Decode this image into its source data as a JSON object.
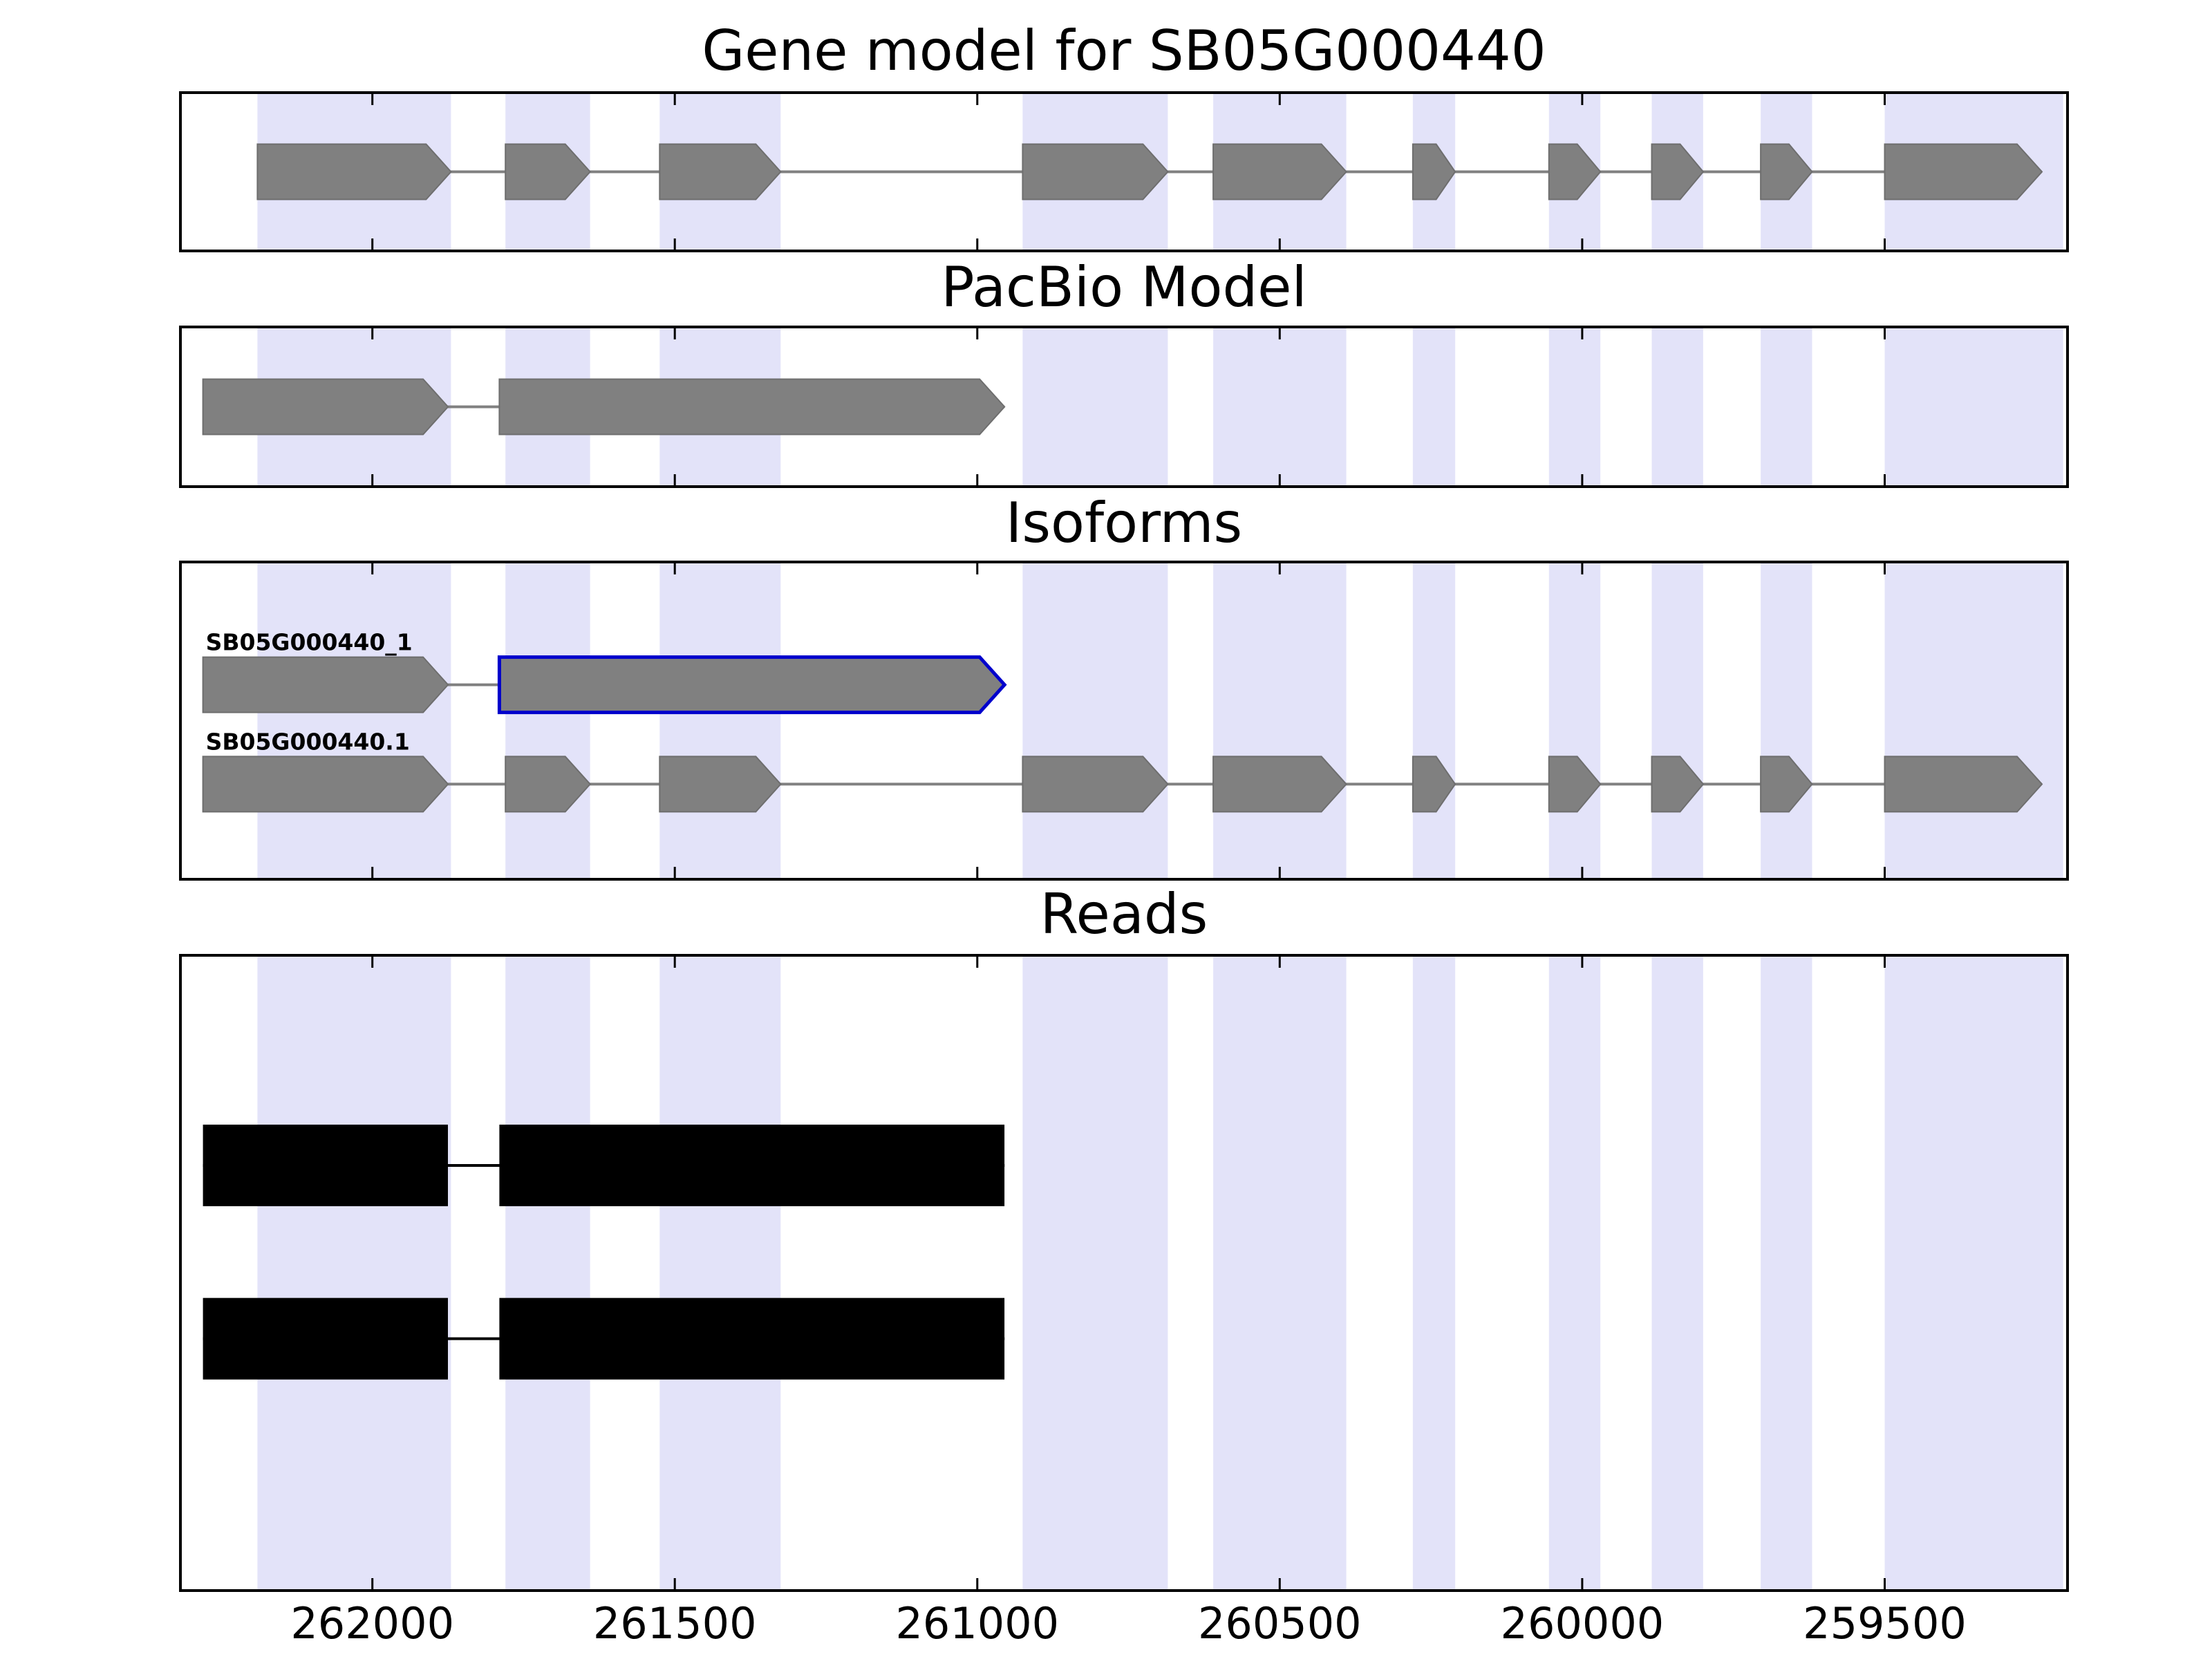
{
  "figure": {
    "background_color": "#ffffff"
  },
  "chart_data": {
    "type": "area",
    "subtype": "gene-model-tracks",
    "xlim": [
      262315,
      259200
    ],
    "xticks": [
      262000,
      261500,
      261000,
      260500,
      260000,
      259500
    ],
    "highlight_color": "#e3e3f9",
    "exon_color": "#808080",
    "exon_edge_color": "#6e6e6e",
    "read_color": "#000000",
    "intron_color": "#808080",
    "selected_outline_color": "#0000cc",
    "highlight_regions": [
      [
        262190,
        261870
      ],
      [
        261780,
        261640
      ],
      [
        261525,
        261325
      ],
      [
        260925,
        260685
      ],
      [
        260610,
        260390
      ],
      [
        260280,
        260210
      ],
      [
        260055,
        259970
      ],
      [
        259885,
        259800
      ],
      [
        259705,
        259620
      ],
      [
        259500,
        259205
      ]
    ],
    "panels": [
      {
        "title": "Gene model for SB05G000440",
        "rows": [
          {
            "label": "",
            "style": "exon-arrow",
            "blocks": [
              [
                262190,
                261870
              ],
              [
                261780,
                261640
              ],
              [
                261525,
                261325
              ],
              [
                260925,
                260685
              ],
              [
                260610,
                260390
              ],
              [
                260280,
                260210
              ],
              [
                260055,
                259970
              ],
              [
                259885,
                259800
              ],
              [
                259705,
                259620
              ],
              [
                259500,
                259240
              ]
            ]
          }
        ]
      },
      {
        "title": "PacBio Model",
        "rows": [
          {
            "label": "",
            "style": "exon-arrow",
            "blocks": [
              [
                262280,
                261875
              ],
              [
                261790,
                260955
              ]
            ]
          }
        ]
      },
      {
        "title": "Isoforms",
        "rows": [
          {
            "label": "SB05G000440_1",
            "style": "exon-arrow",
            "selected_block": 1,
            "blocks": [
              [
                262280,
                261875
              ],
              [
                261790,
                260955
              ]
            ]
          },
          {
            "label": "SB05G000440.1",
            "style": "exon-arrow",
            "blocks": [
              [
                262280,
                261875
              ],
              [
                261780,
                261640
              ],
              [
                261525,
                261325
              ],
              [
                260925,
                260685
              ],
              [
                260610,
                260390
              ],
              [
                260280,
                260210
              ],
              [
                260055,
                259970
              ],
              [
                259885,
                259800
              ],
              [
                259705,
                259620
              ],
              [
                259500,
                259240
              ]
            ]
          }
        ]
      },
      {
        "title": "Reads",
        "rows": [
          {
            "label": "",
            "style": "read",
            "blocks": [
              [
                262280,
                261875
              ],
              [
                261790,
                260955
              ]
            ]
          },
          {
            "label": "",
            "style": "read",
            "blocks": [
              [
                262280,
                261875
              ],
              [
                261790,
                260955
              ]
            ]
          }
        ]
      }
    ]
  }
}
